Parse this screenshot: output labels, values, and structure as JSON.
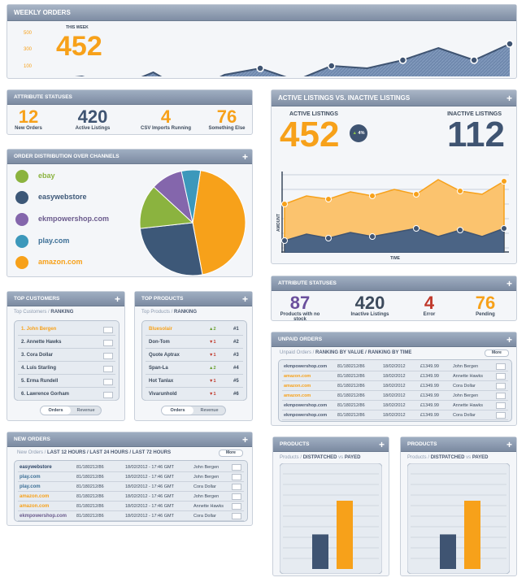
{
  "weekly": {
    "title": "WEEKLY ORDERS",
    "this_week": "THIS WEEK",
    "value": "452",
    "yticks": [
      "500",
      "300",
      "100"
    ],
    "points": [
      75,
      70,
      83,
      65,
      90,
      68,
      60,
      75,
      57,
      60,
      50,
      35,
      50,
      30
    ]
  },
  "attr1": {
    "title": "ATTRIBUTE STATUSES",
    "items": [
      {
        "value": "12",
        "label": "New Orders"
      },
      {
        "value": "420",
        "label": "Active Listings"
      },
      {
        "value": "4",
        "label": "CSV Imports Running"
      },
      {
        "value": "76",
        "label": "Something Else"
      }
    ]
  },
  "dist": {
    "title": "ORDER DISTRIBUTION OVER CHANNELS",
    "channels": [
      {
        "name": "ebay",
        "color": "#8bb33f"
      },
      {
        "name": "easywebstore",
        "color": "#3d5878"
      },
      {
        "name": "ekmpowershop.com",
        "color": "#8466ac"
      },
      {
        "name": "play.com",
        "color": "#3c98bb"
      },
      {
        "name": "amazon.com",
        "color": "#f7a11a"
      }
    ],
    "slices": [
      46,
      27,
      14,
      10,
      6
    ],
    "slice_order": [
      4,
      1,
      0,
      2,
      3
    ]
  },
  "customers": {
    "title": "TOP CUSTOMERS",
    "sub_a": "Top Customers /",
    "sub_b": "RANKING",
    "names": [
      "1. John Bergen",
      "2. Annette Hawks",
      "3. Cora Dollar",
      "4. Luis Starling",
      "5. Erma Rundell",
      "6. Lawrence Gorham"
    ],
    "tab_a": "Orders",
    "tab_b": "Revenue"
  },
  "products": {
    "title": "TOP PRODUCTS",
    "sub_a": "Top Products /",
    "sub_b": "RANKING",
    "items": [
      {
        "name": "Bluesolair",
        "chg": "2",
        "rank": "#1",
        "up": true
      },
      {
        "name": "Don-Tom",
        "chg": "1",
        "rank": "#2",
        "up": false
      },
      {
        "name": "Quote Aptrax",
        "chg": "1",
        "rank": "#3",
        "up": false
      },
      {
        "name": "Span-La",
        "chg": "2",
        "rank": "#4",
        "up": true
      },
      {
        "name": "Hot Tanlax",
        "chg": "1",
        "rank": "#5",
        "up": false
      },
      {
        "name": "Vivarunhold",
        "chg": "1",
        "rank": "#6",
        "up": false
      }
    ],
    "tab_a": "Orders",
    "tab_b": "Revenue"
  },
  "newor": {
    "title": "NEW ORDERS",
    "sub_a": "New Orders /",
    "f1": "LAST 12 HOURS /",
    "f2": "LAST 24 HOURS /",
    "f3": "LAST 72 HOURS",
    "more": "More",
    "rows": [
      {
        "ch": "easywebstore",
        "id": "81/180212/86",
        "date": "18/02/2012 - 17:46 GMT",
        "name": "John Bergen"
      },
      {
        "ch": "play.com",
        "id": "81/180212/86",
        "date": "18/02/2012 - 17:46 GMT",
        "name": "John Bergen"
      },
      {
        "ch": "play.com",
        "id": "81/180212/86",
        "date": "18/02/2012 - 17:46 GMT",
        "name": "Cora Dollar"
      },
      {
        "ch": "amazon.com",
        "id": "81/180212/86",
        "date": "18/02/2012 - 17:46 GMT",
        "name": "John Bergen"
      },
      {
        "ch": "amazon.com",
        "id": "81/180212/86",
        "date": "18/02/2012 - 17:46 GMT",
        "name": "Annette Hawks"
      },
      {
        "ch": "ekmpowershop.com",
        "id": "81/180212/86",
        "date": "18/02/2012 - 17:46 GMT",
        "name": "Cora Dollar"
      }
    ]
  },
  "listings": {
    "title": "ACTIVE LISTINGS vs. INACTIVE LISTINGS",
    "active_label": "ACTIVE LISTINGS",
    "active": "452",
    "inactive_label": "INACTIVE LISTINGS",
    "inactive": "112",
    "badge": "4%",
    "ylabel": "AMOUNT",
    "xlabel": "TIME",
    "orange_pts": [
      40,
      30,
      34,
      25,
      30,
      22,
      28,
      10,
      24,
      28,
      12
    ],
    "navy_pts": [
      85,
      77,
      82,
      75,
      80,
      75,
      70,
      80,
      72,
      80,
      70
    ]
  },
  "attr2": {
    "title": "ATTRIBUTE STATUSES",
    "items": [
      {
        "value": "87",
        "label": "Products with no stock",
        "color": "#6a4f9c"
      },
      {
        "value": "420",
        "label": "Inactive Listings",
        "color": "#3c4a5c"
      },
      {
        "value": "4",
        "label": "Error",
        "color": "#c0392b"
      },
      {
        "value": "76",
        "label": "Pending",
        "color": "#f7a11a"
      }
    ]
  },
  "unpaid": {
    "title": "UNPAID ORDERS",
    "sub_a": "Unpaid Orders /",
    "f1": "RANKING BY VALUE /",
    "f2": "RANKING BY TIME",
    "more": "More",
    "rows": [
      {
        "ch": "ekmpowershop.com",
        "id": "81/180212/86",
        "date": "18/02/2012",
        "price": "£1349.99",
        "name": "John Bergen"
      },
      {
        "ch": "amazon.com",
        "id": "81/180212/86",
        "date": "18/02/2012",
        "price": "£1349.99",
        "name": "Annette Hawks"
      },
      {
        "ch": "amazon.com",
        "id": "81/180212/86",
        "date": "18/02/2012",
        "price": "£1349.99",
        "name": "Cora Dollar"
      },
      {
        "ch": "amazon.com",
        "id": "81/180212/86",
        "date": "18/02/2012",
        "price": "£1349.99",
        "name": "John Bergen"
      },
      {
        "ch": "ekmpowershop.com",
        "id": "81/180212/86",
        "date": "18/02/2012",
        "price": "£1349.99",
        "name": "Annette Hawks"
      },
      {
        "ch": "ekmpowershop.com",
        "id": "81/180212/86",
        "date": "18/02/2012",
        "price": "£1349.99",
        "name": "Cora Dollar"
      }
    ]
  },
  "prod1": {
    "title": "PRODUCTS",
    "sub_a": "Products /",
    "sub_b": "DISTPATCHED",
    "sub_vs": "vs",
    "sub_c": "PAYED"
  },
  "prod2": {
    "title": "PRODUCTS",
    "sub_a": "Products /",
    "sub_b": "DISTPATCHED",
    "sub_vs": "vs",
    "sub_c": "PAYED"
  },
  "chart_data": [
    {
      "type": "bar",
      "categories": [
        "Dispatched",
        "Payed"
      ],
      "values": [
        38,
        75
      ],
      "title": "Products"
    },
    {
      "type": "bar",
      "categories": [
        "Dispatched",
        "Payed"
      ],
      "values": [
        38,
        75
      ],
      "title": "Products"
    }
  ]
}
